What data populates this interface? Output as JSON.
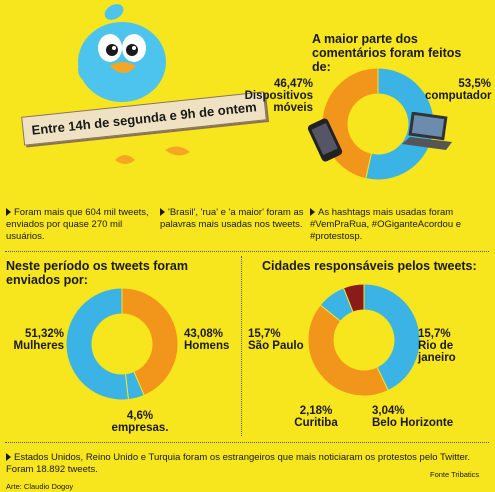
{
  "banner": {
    "text": "Entre 14h de segunda e 9h de ontem"
  },
  "colors": {
    "background": "#f7e51d",
    "orange": "#f2951b",
    "blue": "#3bb3e5",
    "darkred": "#8b1a1a"
  },
  "facts": {
    "f1": "Foram mais que 604 mil tweets, enviados por quase 270 mil usuários.",
    "f2": "'Brasil', 'rua' e 'a maior' foram as palavras mais usadas nos tweets.",
    "f3": "As hashtags mais usadas foram #VemPraRua, #OGiganteAcordou e #protestosp."
  },
  "footer": {
    "note": "Estados Unidos, Reino Unido e Turquia foram os estrangeiros que mais noticiaram os protestos pelo Twitter. Foram 18.892 tweets.",
    "source": "Fonte Tribatics",
    "credit": "Arte: Claudio Dogoy"
  },
  "icons": {
    "bird": "twitter-bird-icon",
    "phone": "smartphone-icon",
    "laptop": "laptop-icon"
  },
  "chart_data": [
    {
      "type": "pie",
      "title": "A maior parte dos comentários foram feitos de:",
      "labels": [
        "computador",
        "Dispositivos móveis"
      ],
      "values": [
        53.5,
        46.47
      ],
      "value_labels": [
        "53,5%",
        "46,47%"
      ],
      "colors": [
        "#3bb3e5",
        "#f2951b"
      ]
    },
    {
      "type": "pie",
      "title": "Neste período os tweets foram enviados por:",
      "labels": [
        "Homens",
        "empresas.",
        "Mulheres"
      ],
      "values": [
        43.08,
        4.6,
        51.32
      ],
      "value_labels": [
        "43,08%",
        "4,6%",
        "51,32%"
      ],
      "colors": [
        "#f2951b",
        "#3bb3e5",
        "#3bb3e5"
      ]
    },
    {
      "type": "pie",
      "title": "Cidades responsáveis pelos tweets:",
      "labels": [
        "São Paulo",
        "Rio de janeiro",
        "Belo Horizonte",
        "Curitiba"
      ],
      "values": [
        15.7,
        15.7,
        3.04,
        2.18
      ],
      "value_labels": [
        "15,7%",
        "15,7%",
        "3,04%",
        "2,18%"
      ],
      "colors": [
        "#3bb3e5",
        "#f2951b",
        "#3bb3e5",
        "#8b1a1a"
      ]
    }
  ]
}
